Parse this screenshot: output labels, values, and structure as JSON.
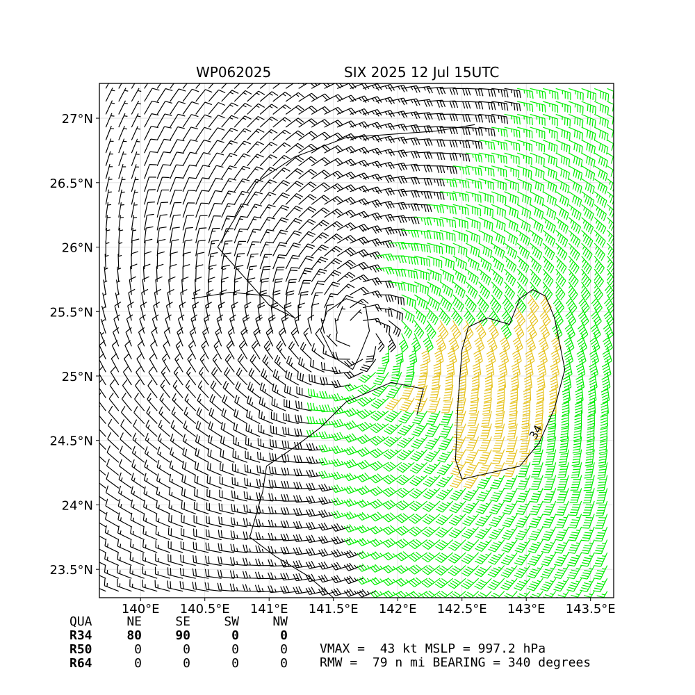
{
  "header": {
    "storm_id": "WP062025",
    "storm_time": "SIX 2025 12 Jul 15UTC"
  },
  "chart_data": {
    "type": "wind-barb-map",
    "xlim": [
      139.68,
      143.68
    ],
    "ylim": [
      23.28,
      27.27
    ],
    "x_ticks": [
      140.0,
      140.5,
      141.0,
      141.5,
      142.0,
      142.5,
      143.0,
      143.5
    ],
    "x_tick_labels": [
      "140°E",
      "140.5°E",
      "141°E",
      "141.5°E",
      "142°E",
      "142.5°E",
      "143°E",
      "143.5°E"
    ],
    "y_ticks": [
      23.5,
      24.0,
      24.5,
      25.0,
      25.5,
      26.0,
      26.5,
      27.0
    ],
    "y_tick_labels": [
      "23.5°N",
      "24°N",
      "24.5°N",
      "25°N",
      "25.5°N",
      "26°N",
      "26.5°N",
      "27°N"
    ],
    "grid": true,
    "storm_center": {
      "lon": 141.7,
      "lat": 25.3
    },
    "barb_colors": {
      "below_34": "#000000",
      "34_to_50": "#00ee00",
      "above_50": "#e6c31e"
    },
    "contour_label": "34",
    "contour_34kt": [
      [
        142.5,
        24.2
      ],
      [
        142.95,
        24.3
      ],
      [
        143.1,
        24.48
      ],
      [
        143.22,
        24.75
      ],
      [
        143.3,
        25.05
      ],
      [
        143.22,
        25.45
      ],
      [
        143.15,
        25.62
      ],
      [
        143.05,
        25.67
      ],
      [
        142.95,
        25.6
      ],
      [
        142.87,
        25.4
      ],
      [
        142.7,
        25.45
      ],
      [
        142.55,
        25.38
      ],
      [
        142.5,
        25.2
      ],
      [
        142.47,
        24.8
      ],
      [
        142.45,
        24.35
      ],
      [
        142.5,
        24.2
      ]
    ],
    "contour_black_outer": [
      [
        141.5,
        23.28
      ],
      [
        141.3,
        23.45
      ],
      [
        141.05,
        23.6
      ],
      [
        140.85,
        23.75
      ],
      [
        140.95,
        24.1
      ],
      [
        140.98,
        24.3
      ],
      [
        141.2,
        24.45
      ],
      [
        141.4,
        24.6
      ],
      [
        141.6,
        24.8
      ],
      [
        141.95,
        24.95
      ],
      [
        142.2,
        24.9
      ],
      [
        142.15,
        24.7
      ]
    ],
    "contour_black_inner": [
      [
        141.65,
        25.05
      ],
      [
        141.5,
        25.15
      ],
      [
        141.4,
        25.35
      ],
      [
        141.45,
        25.5
      ],
      [
        141.6,
        25.6
      ],
      [
        141.75,
        25.55
      ],
      [
        141.78,
        25.35
      ],
      [
        141.7,
        25.15
      ],
      [
        141.65,
        25.05
      ]
    ],
    "contour_black_north": [
      [
        140.4,
        25.6
      ],
      [
        140.7,
        25.65
      ],
      [
        141.0,
        25.62
      ],
      [
        141.2,
        25.45
      ],
      [
        141.0,
        25.55
      ],
      [
        140.6,
        26.0
      ],
      [
        140.9,
        26.5
      ],
      [
        141.2,
        26.7
      ],
      [
        141.6,
        26.85
      ],
      [
        142.3,
        26.9
      ],
      [
        142.6,
        26.95
      ]
    ]
  },
  "table": {
    "headers": [
      "QUA",
      "NE",
      "SE",
      "SW",
      "NW"
    ],
    "rows": [
      {
        "label": "R34",
        "values": [
          "80",
          "90",
          "0",
          "0"
        ]
      },
      {
        "label": "R50",
        "values": [
          "0",
          "0",
          "0",
          "0"
        ]
      },
      {
        "label": "R64",
        "values": [
          "0",
          "0",
          "0",
          "0"
        ]
      }
    ]
  },
  "stats": {
    "line1": "VMAX =  43 kt MSLP = 997.2 hPa",
    "line2": "RMW =  79 n mi BEARING = 340 degrees"
  }
}
